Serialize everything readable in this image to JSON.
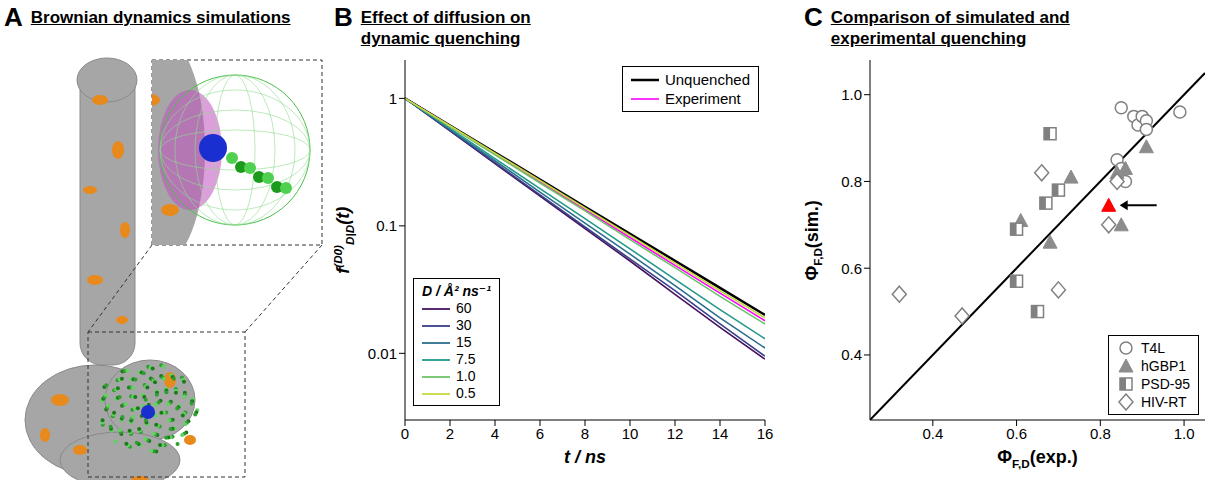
{
  "panel_a": {
    "panel": "A",
    "title": "Brownian dynamics simulations"
  },
  "chart_data": [
    {
      "panel": "B",
      "type": "line",
      "title": "Effect of diffusion on dynamic quenching",
      "x_label": "t / ns",
      "y_label": {
        "base": "f",
        "superscript": "(D0)",
        "subscript": "D|D",
        "suffix": "(t)"
      },
      "legend_title": "D / Å² ns⁻¹",
      "x": [
        0,
        2,
        4,
        6,
        8,
        10,
        12,
        14,
        16
      ],
      "series": [
        {
          "name": "Unquenched",
          "color": "#000000",
          "values": [
            1,
            0.613,
            0.376,
            0.231,
            0.141,
            0.0867,
            0.0532,
            0.0326,
            0.02
          ]
        },
        {
          "name": "Experiment",
          "color": "#ff00ff",
          "values": [
            1,
            0.605,
            0.366,
            0.221,
            0.134,
            0.081,
            0.049,
            0.0297,
            0.018
          ]
        },
        {
          "name": "60",
          "color": "#46125e",
          "values": [
            1,
            0.555,
            0.308,
            0.171,
            0.095,
            0.053,
            0.029,
            0.016,
            0.009
          ]
        },
        {
          "name": "30",
          "color": "#3a3f8a",
          "values": [
            1,
            0.559,
            0.313,
            0.175,
            0.098,
            0.055,
            0.031,
            0.017,
            0.0095
          ]
        },
        {
          "name": "15",
          "color": "#2b6f8e",
          "values": [
            1,
            0.569,
            0.324,
            0.184,
            0.105,
            0.06,
            0.034,
            0.019,
            0.011
          ]
        },
        {
          "name": "7.5",
          "color": "#23998a",
          "values": [
            1,
            0.581,
            0.337,
            0.196,
            0.114,
            0.066,
            0.038,
            0.022,
            0.013
          ]
        },
        {
          "name": "1.0",
          "color": "#6cc36a",
          "values": [
            1,
            0.601,
            0.361,
            0.217,
            0.131,
            0.078,
            0.047,
            0.028,
            0.017
          ]
        },
        {
          "name": "0.5",
          "color": "#c6d840",
          "values": [
            1,
            0.61,
            0.372,
            0.227,
            0.138,
            0.084,
            0.051,
            0.031,
            0.019
          ]
        }
      ],
      "xlim": [
        0,
        16
      ],
      "xticks": [
        0,
        2,
        4,
        6,
        8,
        10,
        12,
        14,
        16
      ],
      "ylim": [
        0.003,
        2
      ],
      "yticks": [
        0.01,
        0.1,
        1
      ],
      "log": "y",
      "legend": "upper right"
    },
    {
      "panel": "C",
      "type": "scatter",
      "title": "Comparison of simulated and experimental quenching",
      "x_label": {
        "base": "Φ",
        "subscript": "F,D",
        "suffix": "(exp.)"
      },
      "y_label": {
        "base": "Φ",
        "subscript": "F,D",
        "suffix": "(sim.)"
      },
      "series": [
        {
          "name": "T4L",
          "color": "#808080",
          "marker": "circle",
          "x": [
            0.85,
            0.88,
            0.89,
            0.9,
            0.91,
            0.91,
            0.99,
            0.84,
            0.85,
            0.86
          ],
          "y": [
            0.97,
            0.95,
            0.93,
            0.95,
            0.94,
            0.92,
            0.96,
            0.85,
            0.83,
            0.8
          ]
        },
        {
          "name": "hGBP1",
          "color": "#8c8c8c",
          "marker": "triangle",
          "x": [
            0.61,
            0.68,
            0.73,
            0.84,
            0.86,
            0.85,
            0.91
          ],
          "y": [
            0.71,
            0.66,
            0.81,
            0.82,
            0.83,
            0.7,
            0.88
          ]
        },
        {
          "name": "PSD-95",
          "color": "#808080",
          "marker": "half_square",
          "x": [
            0.6,
            0.6,
            0.65,
            0.67,
            0.68,
            0.7
          ],
          "y": [
            0.69,
            0.57,
            0.5,
            0.75,
            0.91,
            0.78
          ]
        },
        {
          "name": "HIV-RT",
          "color": "#808080",
          "marker": "diamond",
          "x": [
            0.32,
            0.47,
            0.66,
            0.7,
            0.82,
            0.84
          ],
          "y": [
            0.54,
            0.49,
            0.82,
            0.55,
            0.7,
            0.8
          ]
        }
      ],
      "highlight": {
        "x": [
          0.82
        ],
        "y": [
          0.745
        ],
        "color": "#ff0000",
        "marker": "triangle"
      },
      "reference_line": {
        "x": [
          0.25,
          1.05
        ],
        "y": [
          0.25,
          1.05
        ],
        "color": "#000000"
      },
      "xlim": [
        0.25,
        1.05
      ],
      "xticks": [
        0.4,
        0.6,
        0.8,
        {
          "value": 1,
          "label": "1.0"
        }
      ],
      "ylim": [
        0.25,
        1.08
      ],
      "yticks": [
        0.4,
        0.6,
        0.8,
        {
          "value": 1,
          "label": "1.0"
        }
      ],
      "legend": "lower right"
    }
  ]
}
